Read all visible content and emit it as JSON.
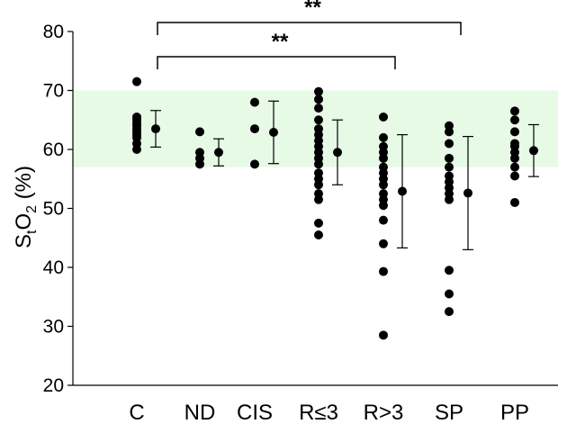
{
  "chart_data": {
    "type": "scatter",
    "subtype": "dot-plot-with-mean-sd",
    "ylabel": {
      "main": "S",
      "sub1": "t",
      "mid": "O",
      "sub2": "2",
      "tail": " (%)"
    },
    "ylim": [
      20,
      80
    ],
    "yticks": [
      20,
      30,
      40,
      50,
      60,
      70,
      80
    ],
    "grid": false,
    "categories": [
      "C",
      "ND",
      "CIS",
      "R≤3",
      "R>3",
      "SP",
      "PP"
    ],
    "normal_range": {
      "low": 57,
      "high": 70,
      "color": "#e6fae6"
    },
    "groups": [
      {
        "name": "C",
        "points": [
          71.5,
          65.5,
          65,
          64.5,
          64,
          63.5,
          63,
          62.5,
          62,
          61,
          60
        ],
        "mean": 63.5,
        "sd": 3.1
      },
      {
        "name": "ND",
        "points": [
          63,
          59.5,
          58.5,
          57.5
        ],
        "mean": 59.5,
        "sd": 2.3
      },
      {
        "name": "CIS",
        "points": [
          68,
          63.5,
          57.5
        ],
        "mean": 62.9,
        "sd": 5.3
      },
      {
        "name": "R≤3",
        "points": [
          69.8,
          68.5,
          67,
          65,
          63.5,
          62.5,
          61.5,
          60.5,
          59.5,
          58.5,
          57.5,
          56,
          55,
          54,
          52.5,
          51.5,
          47.5,
          45.5
        ],
        "mean": 59.5,
        "sd": 5.5
      },
      {
        "name": "R>3",
        "points": [
          65.5,
          62,
          60.5,
          59.5,
          58.5,
          57,
          56,
          55,
          54,
          52.5,
          51.5,
          50.5,
          48,
          44,
          39.3,
          28.5
        ],
        "mean": 52.9,
        "sd": 9.6
      },
      {
        "name": "SP",
        "points": [
          64,
          63,
          61,
          58.5,
          57,
          55.5,
          54.5,
          53.5,
          52.5,
          51.5,
          39.5,
          35.5,
          32.5
        ],
        "mean": 52.6,
        "sd": 9.6
      },
      {
        "name": "PP",
        "points": [
          66.5,
          65,
          63,
          61,
          60.5,
          59.5,
          58.5,
          57,
          55.5,
          51
        ],
        "mean": 59.8,
        "sd": 4.4
      }
    ],
    "significance": [
      {
        "from": "C",
        "to": "SP",
        "label": "**"
      },
      {
        "from": "C",
        "to": "R>3",
        "label": "**"
      }
    ],
    "colors": {
      "points": "#000000",
      "band": "#e6fae6"
    }
  }
}
